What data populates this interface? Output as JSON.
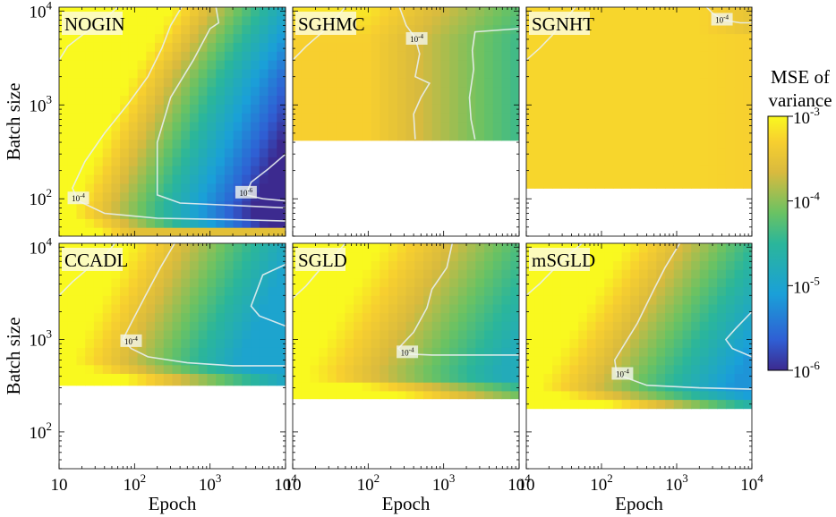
{
  "figure": {
    "colorbar": {
      "title_line1": "MSE of",
      "title_line2": "variance",
      "colormap": "viridis",
      "scale": "log",
      "range": [
        1e-06,
        0.001
      ],
      "tick_base": "10",
      "tick_exponents": [
        "-3",
        "-4",
        "-5",
        "-6"
      ]
    },
    "shared_axes": {
      "ylabel": "Batch size",
      "xlabel": "Epoch",
      "x_scale": "log",
      "y_scale": "log",
      "x_range": [
        10,
        10000
      ],
      "y_range": [
        40,
        11000
      ],
      "x_ticks": [
        {
          "base": "10",
          "exp": ""
        },
        {
          "base": "10",
          "exp": "2"
        },
        {
          "base": "10",
          "exp": "3"
        },
        {
          "base": "10",
          "exp": "4"
        }
      ],
      "y_ticks": [
        {
          "base": "10",
          "exp": "2"
        },
        {
          "base": "10",
          "exp": "3"
        },
        {
          "base": "10",
          "exp": "4"
        }
      ]
    },
    "contour_labels": {
      "minus4": {
        "base": "10",
        "exp": "-4"
      },
      "minus6": {
        "base": "10",
        "exp": "-6"
      }
    }
  },
  "chart_data": [
    {
      "type": "heatmap",
      "title": "NOGIN",
      "xlabel": "",
      "ylabel": "Batch size",
      "min_batch": 40,
      "contours": [
        "10^-4",
        "10^-6"
      ],
      "description_values": {
        "min_log10_mse": -6.0,
        "max_log10_mse": -3.0
      }
    },
    {
      "type": "heatmap",
      "title": "SGHMC",
      "xlabel": "",
      "ylabel": "",
      "min_batch": 420,
      "contours": [
        "10^-4"
      ],
      "description_values": {
        "min_log10_mse": -4.8,
        "max_log10_mse": -3.0
      }
    },
    {
      "type": "heatmap",
      "title": "SGNHT",
      "xlabel": "",
      "ylabel": "",
      "min_batch": 130,
      "contours": [
        "10^-4"
      ],
      "description_values": {
        "min_log10_mse": -4.2,
        "max_log10_mse": -3.0
      }
    },
    {
      "type": "heatmap",
      "title": "CCADL",
      "xlabel": "Epoch",
      "ylabel": "Batch size",
      "min_batch": 320,
      "contours": [
        "10^-4"
      ],
      "description_values": {
        "min_log10_mse": -5.0,
        "max_log10_mse": -3.0
      }
    },
    {
      "type": "heatmap",
      "title": "SGLD",
      "xlabel": "Epoch",
      "ylabel": "",
      "min_batch": 230,
      "contours": [
        "10^-4"
      ],
      "description_values": {
        "min_log10_mse": -4.8,
        "max_log10_mse": -3.0
      }
    },
    {
      "type": "heatmap",
      "title": "mSGLD",
      "xlabel": "Epoch",
      "ylabel": "",
      "min_batch": 180,
      "contours": [
        "10^-4"
      ],
      "description_values": {
        "min_log10_mse": -5.2,
        "max_log10_mse": -3.0
      }
    }
  ]
}
